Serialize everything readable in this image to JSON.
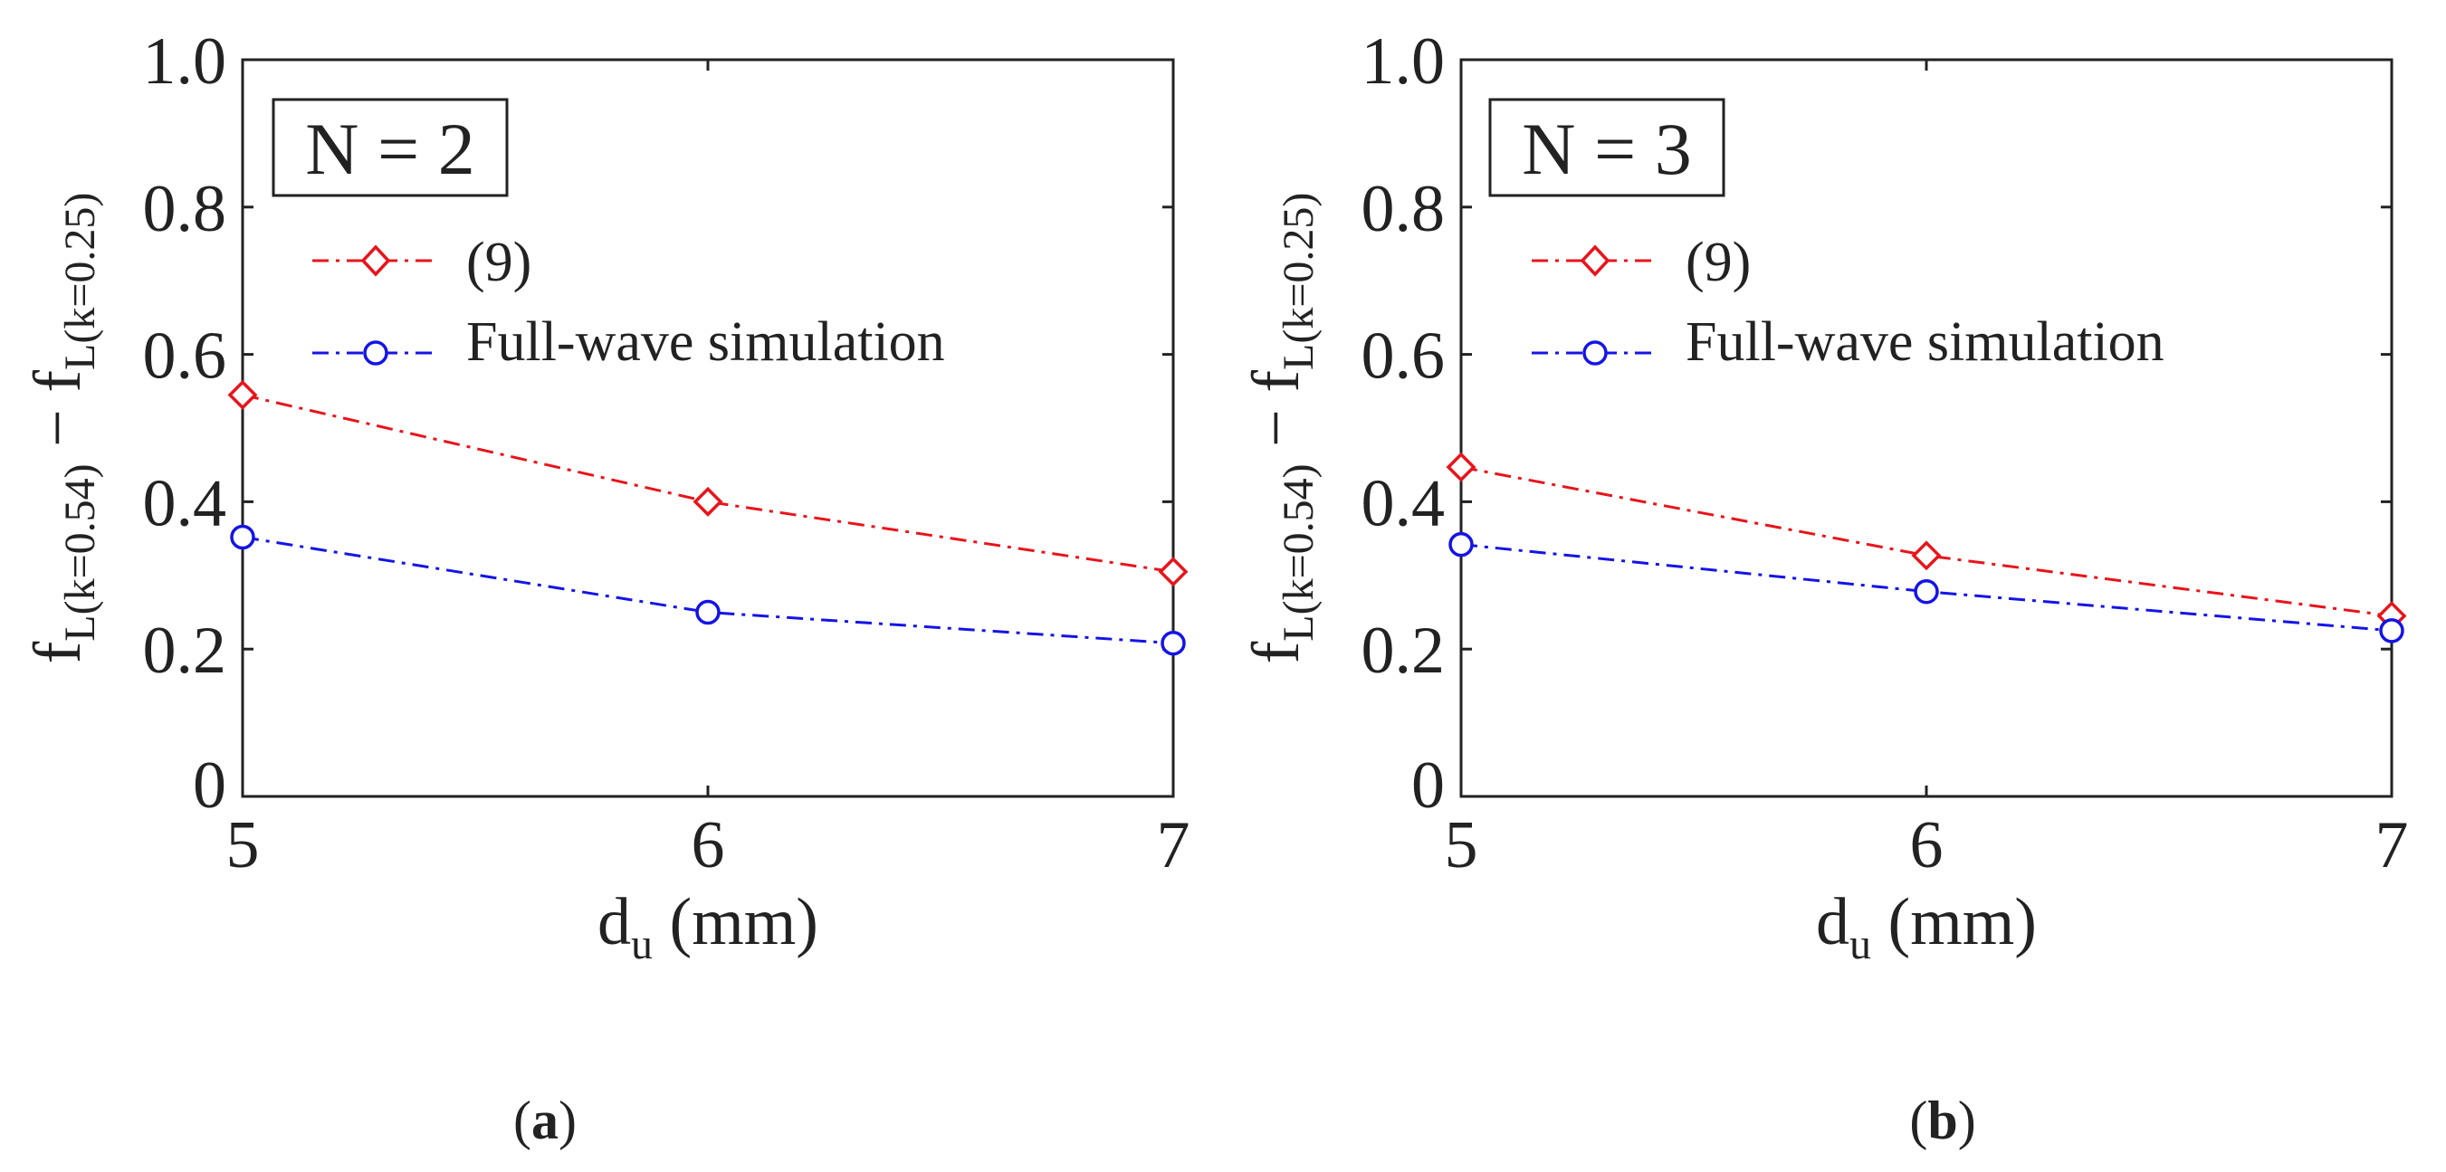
{
  "chart_data": [
    {
      "type": "line",
      "panel": "a",
      "panel_open": "(",
      "panel_letter": "a",
      "panel_close": ")",
      "box_label": "N = 2",
      "xlabel_main": "d",
      "xlabel_sub": "u",
      "xlabel_unit": " (mm)",
      "ylabel_f1": "f",
      "ylabel_sub1": "L(k=0.54)",
      "ylabel_minus": " − ",
      "ylabel_f2": "f",
      "ylabel_sub2": "L(k=0.25)",
      "xlim": [
        5,
        7
      ],
      "ylim": [
        0,
        1
      ],
      "x": [
        5,
        6,
        7
      ],
      "xtick_values": [
        5,
        6,
        7
      ],
      "xtick_labels": [
        "5",
        "6",
        "7"
      ],
      "ytick_values": [
        0,
        0.2,
        0.4,
        0.6,
        0.8,
        1.0
      ],
      "ytick_labels": [
        "0",
        "0.2",
        "0.4",
        "0.6",
        "0.8",
        "1.0"
      ],
      "series": [
        {
          "name": "(9)",
          "marker": "diamond",
          "color": "#e8141b",
          "values": [
            0.545,
            0.4,
            0.305
          ]
        },
        {
          "name": "Full-wave simulation",
          "marker": "circle",
          "color": "#1414e6",
          "values": [
            0.352,
            0.25,
            0.208
          ]
        }
      ]
    },
    {
      "type": "line",
      "panel": "b",
      "panel_open": "(",
      "panel_letter": "b",
      "panel_close": ")",
      "box_label": "N = 3",
      "xlabel_main": "d",
      "xlabel_sub": "u",
      "xlabel_unit": " (mm)",
      "ylabel_f1": "f",
      "ylabel_sub1": "L(k=0.54)",
      "ylabel_minus": " − ",
      "ylabel_f2": "f",
      "ylabel_sub2": "L(k=0.25)",
      "xlim": [
        5,
        7
      ],
      "ylim": [
        0,
        1
      ],
      "x": [
        5,
        6,
        7
      ],
      "xtick_values": [
        5,
        6,
        7
      ],
      "xtick_labels": [
        "5",
        "6",
        "7"
      ],
      "ytick_values": [
        0,
        0.2,
        0.4,
        0.6,
        0.8,
        1.0
      ],
      "ytick_labels": [
        "0",
        "0.2",
        "0.4",
        "0.6",
        "0.8",
        "1.0"
      ],
      "series": [
        {
          "name": "(9)",
          "marker": "diamond",
          "color": "#e8141b",
          "values": [
            0.447,
            0.327,
            0.245
          ]
        },
        {
          "name": "Full-wave simulation",
          "marker": "circle",
          "color": "#1414e6",
          "values": [
            0.342,
            0.278,
            0.225
          ]
        }
      ]
    }
  ]
}
